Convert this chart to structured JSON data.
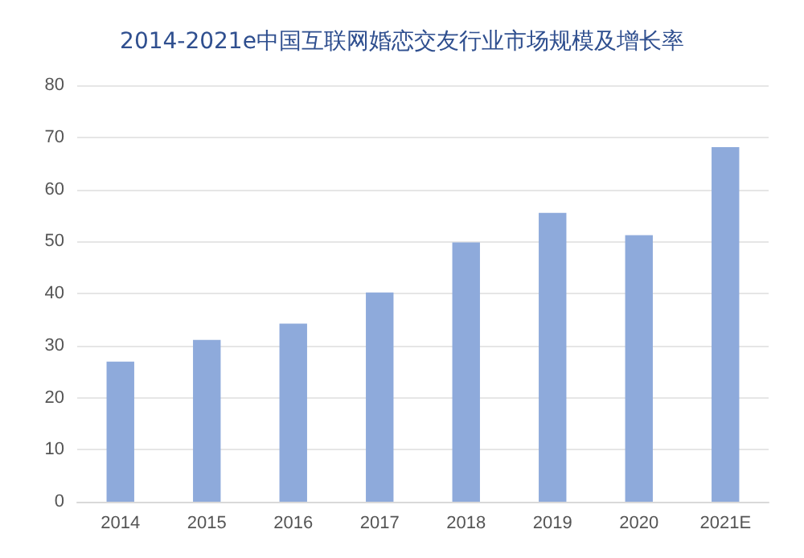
{
  "chart_data": {
    "type": "bar",
    "title": "2014-2021e中国互联网婚恋交友行业市场规模及增长率",
    "categories": [
      "2014",
      "2015",
      "2016",
      "2017",
      "2018",
      "2019",
      "2020",
      "2021E"
    ],
    "values": [
      26.9,
      31.1,
      34.2,
      40.2,
      49.8,
      55.5,
      51.2,
      68.1
    ],
    "color": "#8eaadb",
    "ylim": [
      0,
      80
    ],
    "yticks": [
      0,
      10,
      20,
      30,
      40,
      50,
      60,
      70,
      80
    ],
    "grid": "y"
  }
}
